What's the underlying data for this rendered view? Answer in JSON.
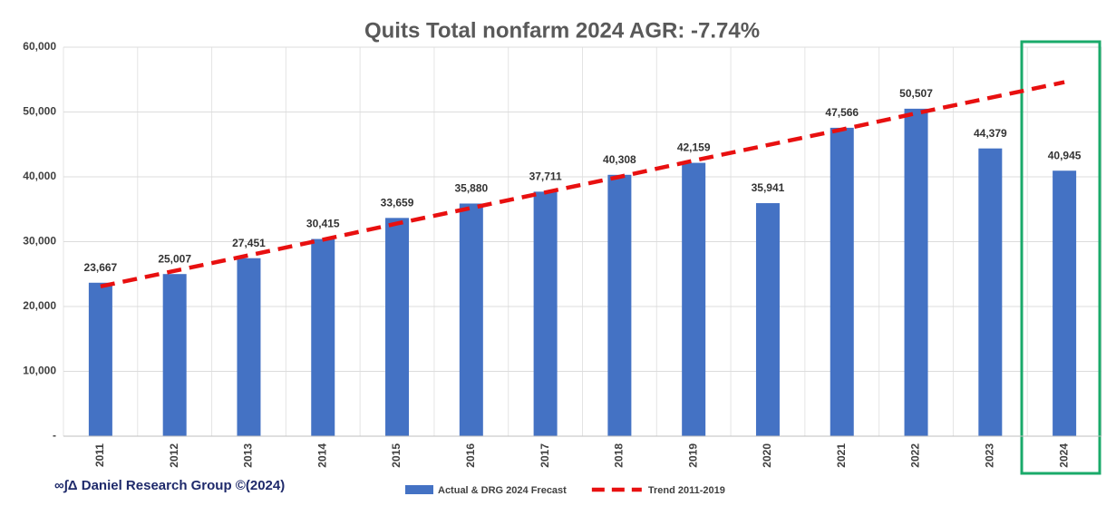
{
  "chart_data": {
    "type": "bar",
    "title": "Quits Total nonfarm 2024 AGR: -7.74%",
    "footer": "∞∫Δ Daniel Research Group ©(2024)",
    "categories": [
      "2011",
      "2012",
      "2013",
      "2014",
      "2015",
      "2016",
      "2017",
      "2018",
      "2019",
      "2020",
      "2021",
      "2022",
      "2023",
      "2024"
    ],
    "series": [
      {
        "name": "Actual & DRG 2024 Frecast",
        "type": "bar",
        "color": "#4472c4",
        "values": [
          23667,
          25007,
          27451,
          30415,
          33659,
          35880,
          37711,
          40308,
          42159,
          35941,
          47566,
          50507,
          44379,
          40945
        ],
        "value_labels": [
          "23,667",
          "25,007",
          "27,451",
          "30,415",
          "33,659",
          "35,880",
          "37,711",
          "40,308",
          "42,159",
          "35,941",
          "47,566",
          "50,507",
          "44,379",
          "40,945"
        ]
      },
      {
        "name": "Trend 2011-2019",
        "type": "line",
        "color": "#e81010",
        "values": [
          23100,
          25500,
          27900,
          30300,
          32800,
          35200,
          37600,
          40000,
          42500,
          44900,
          47300,
          49800,
          52200,
          54600
        ]
      }
    ],
    "ylim": [
      0,
      60000
    ],
    "yticks": [
      {
        "value": 0,
        "label": "-"
      },
      {
        "value": 10000,
        "label": "10,000"
      },
      {
        "value": 20000,
        "label": "20,000"
      },
      {
        "value": 30000,
        "label": "30,000"
      },
      {
        "value": 40000,
        "label": "40,000"
      },
      {
        "value": 50000,
        "label": "50,000"
      },
      {
        "value": 60000,
        "label": "60,000"
      }
    ],
    "grid": true,
    "legend": "bottom"
  }
}
